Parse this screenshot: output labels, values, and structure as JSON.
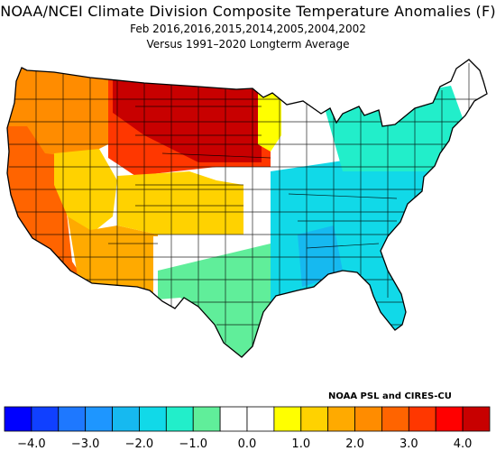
{
  "title": "NOAA/NCEI Climate Division Composite Temperature Anomalies (F)",
  "subtitle": "Feb  2016,2016,2015,2014,2005,2004,2002",
  "baseline": "Versus 1991–2020 Longterm Average",
  "credit": "NOAA PSL and CIRES-CU",
  "legend": {
    "colors": [
      "#0000ff",
      "#1040ff",
      "#1e78ff",
      "#1e96ff",
      "#16b9f0",
      "#11d9e8",
      "#22eeca",
      "#60ee9a",
      "#ffffff",
      "#ffffff",
      "#ffff00",
      "#ffd200",
      "#ffaa00",
      "#ff8c00",
      "#ff6400",
      "#ff3700",
      "#ff0000",
      "#c80000"
    ],
    "tick_labels": [
      "−4.0",
      "−3.0",
      "−2.0",
      "−1.0",
      "0.0",
      "1.0",
      "2.0",
      "3.0",
      "4.0"
    ]
  },
  "regions": [
    {
      "name": "great-lakes-northeast",
      "color": "#ffffff"
    },
    {
      "name": "west-coast-california",
      "color": "#ff6400"
    },
    {
      "name": "pacific-northwest",
      "color": "#ff8c00"
    },
    {
      "name": "great-basin",
      "color": "#ffd200"
    },
    {
      "name": "southwest",
      "color": "#ffaa00"
    },
    {
      "name": "northern-plains",
      "color": "#ff3700"
    },
    {
      "name": "north-dakota-core",
      "color": "#c80000"
    },
    {
      "name": "central-rockies",
      "color": "#ffd200"
    },
    {
      "name": "minnesota",
      "color": "#ffff00"
    },
    {
      "name": "central-plains",
      "color": "#ffffff"
    },
    {
      "name": "new-mexico",
      "color": "#ffffff"
    },
    {
      "name": "texas-west",
      "color": "#60ee9a"
    },
    {
      "name": "southeast",
      "color": "#11d9e8"
    },
    {
      "name": "mississippi-valley",
      "color": "#16b9f0"
    },
    {
      "name": "northeast",
      "color": "#22eeca"
    }
  ]
}
